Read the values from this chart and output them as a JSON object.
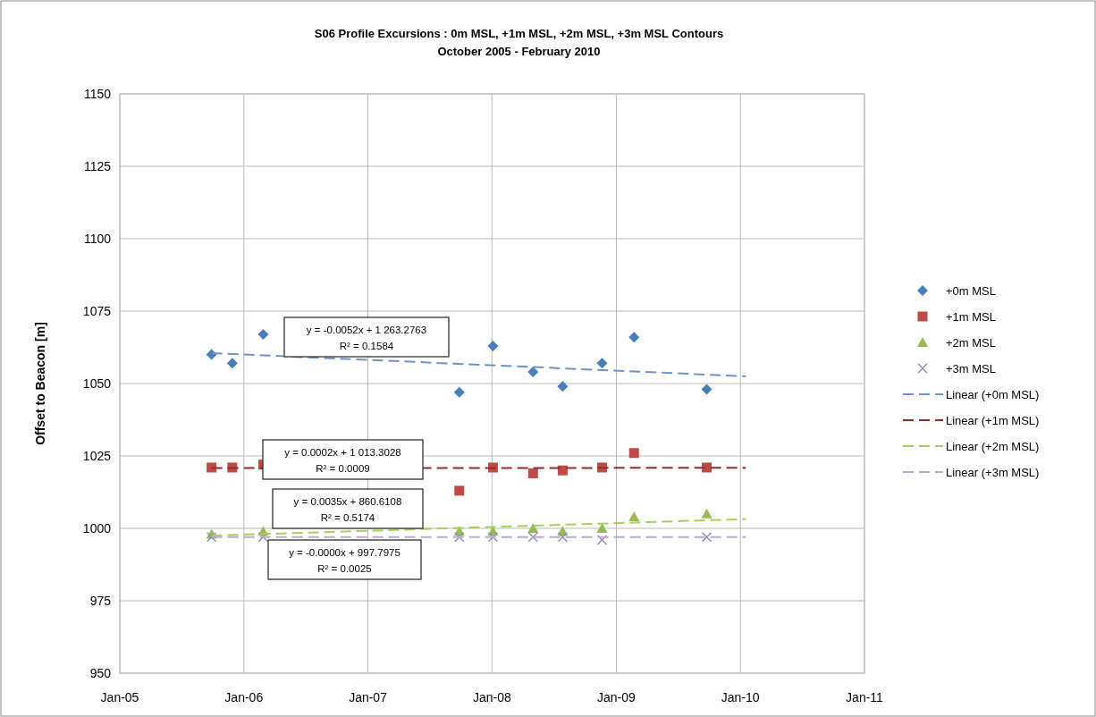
{
  "chart_data": {
    "type": "scatter",
    "title": "S06 Profile Excursions : 0m MSL, +1m MSL, +2m MSL, +3m MSL Contours",
    "subtitle": "October 2005 - February 2010",
    "ylabel": "Offset to Beacon [m]",
    "xlim": [
      "2005-01-01",
      "2011-01-01"
    ],
    "xticks": [
      {
        "value": "2005-01-01",
        "label": "Jan-05"
      },
      {
        "value": "2006-01-01",
        "label": "Jan-06"
      },
      {
        "value": "2007-01-01",
        "label": "Jan-07"
      },
      {
        "value": "2008-01-01",
        "label": "Jan-08"
      },
      {
        "value": "2009-01-01",
        "label": "Jan-09"
      },
      {
        "value": "2010-01-01",
        "label": "Jan-10"
      },
      {
        "value": "2011-01-01",
        "label": "Jan-11"
      }
    ],
    "ylim": [
      950,
      1150
    ],
    "yticks": [
      950,
      975,
      1000,
      1025,
      1050,
      1075,
      1100,
      1125,
      1150
    ],
    "grid": true,
    "legend": "right",
    "series": [
      {
        "name": "+0m MSL",
        "color": "#4a7ebb",
        "marker": "diamond",
        "x": [
          "2005-09-28",
          "2005-11-28",
          "2006-02-27",
          "2007-09-27",
          "2008-01-04",
          "2008-05-01",
          "2008-07-27",
          "2008-11-20",
          "2009-02-22",
          "2009-09-24"
        ],
        "values": [
          1060,
          1057,
          1067,
          1047,
          1063,
          1054,
          1049,
          1057,
          1066,
          1048
        ]
      },
      {
        "name": "+1m MSL",
        "color": "#be4b48",
        "marker": "square",
        "x": [
          "2005-09-28",
          "2005-11-28",
          "2006-02-27",
          "2007-09-27",
          "2008-01-04",
          "2008-05-01",
          "2008-07-27",
          "2008-11-20",
          "2009-02-22",
          "2009-09-24"
        ],
        "values": [
          1021,
          1021,
          1022,
          1013,
          1021,
          1019,
          1020,
          1021,
          1026,
          1021
        ]
      },
      {
        "name": "+2m MSL",
        "color": "#98b954",
        "marker": "triangle",
        "x": [
          "2005-09-28",
          "2006-02-27",
          "2007-09-27",
          "2008-01-04",
          "2008-05-01",
          "2008-07-27",
          "2008-11-20",
          "2009-02-22",
          "2009-09-24"
        ],
        "values": [
          998,
          999,
          999,
          999,
          1000,
          999,
          1000,
          1004,
          1005
        ]
      },
      {
        "name": "+3m MSL",
        "color": "#8a8ab8",
        "marker": "cross",
        "x": [
          "2005-09-28",
          "2006-02-27",
          "2007-09-27",
          "2008-01-04",
          "2008-05-01",
          "2008-07-27",
          "2008-11-20",
          "2009-09-24"
        ],
        "values": [
          997,
          997,
          997,
          997,
          997,
          997,
          996,
          997
        ]
      },
      {
        "name": "Linear (+0m MSL)",
        "type": "line",
        "color": "#6f93c8",
        "line_style": "dashed",
        "x": [
          "2005-09-28",
          "2010-01-17"
        ],
        "values": [
          1060.5,
          1052.5
        ]
      },
      {
        "name": "Linear (+1m MSL)",
        "type": "line",
        "color": "#8b2e2b",
        "line_style": "dashed",
        "x": [
          "2005-09-28",
          "2010-01-17"
        ],
        "values": [
          1020.8,
          1020.9
        ]
      },
      {
        "name": "Linear (+2m MSL)",
        "type": "line",
        "color": "#a6d05a",
        "line_style": "dashed",
        "x": [
          "2005-09-28",
          "2010-01-17"
        ],
        "values": [
          997.5,
          1003.2
        ]
      },
      {
        "name": "Linear (+3m MSL)",
        "type": "line",
        "color": "#b8abd0",
        "line_style": "dashed",
        "x": [
          "2005-09-28",
          "2010-01-17"
        ],
        "values": [
          997,
          997
        ]
      }
    ],
    "annotations": [
      "y = -0.0052x + 1 263.2763",
      "R² = 0.1584",
      "y = 0.0002x + 1 013.3028",
      "R² = 0.0009",
      "y = 0.0035x + 860.6108",
      "R² = 0.5174",
      "y = -0.0000x + 997.7975",
      "R² = 0.0025"
    ]
  }
}
